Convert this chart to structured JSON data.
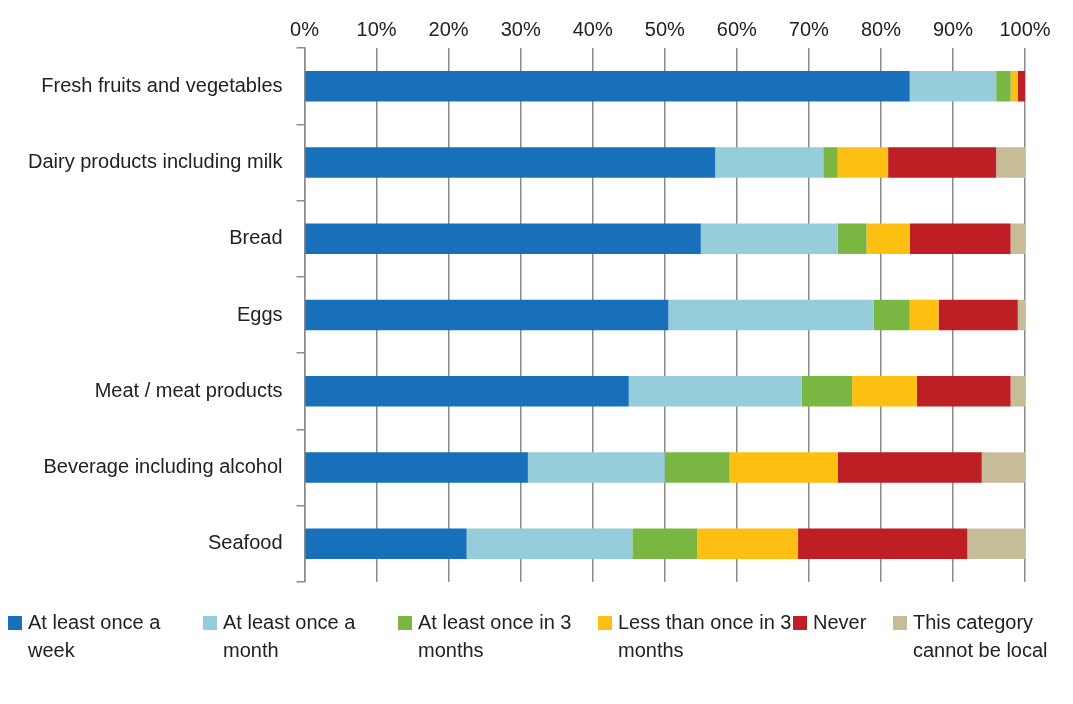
{
  "chart_data": {
    "type": "bar",
    "orientation": "horizontal",
    "stacked": true,
    "categories": [
      "Fresh fruits and vegetables",
      "Dairy products including milk",
      "Bread",
      "Eggs",
      "Meat / meat products",
      "Beverage including alcohol",
      "Seafood"
    ],
    "series": [
      {
        "name": "At least once a week",
        "color": "#1770b9",
        "values": [
          84,
          57,
          55,
          50.5,
          45,
          31,
          22.5
        ]
      },
      {
        "name": "At least once a month",
        "color": "#95cddb",
        "values": [
          12,
          15,
          19,
          28.5,
          24,
          19,
          23
        ]
      },
      {
        "name": "At least once in 3 months",
        "color": "#79b642",
        "values": [
          2,
          2,
          4,
          5,
          7,
          9,
          9
        ]
      },
      {
        "name": "Less than once in 3 months",
        "color": "#fcbf12",
        "values": [
          1,
          7,
          6,
          4,
          9,
          15,
          14
        ]
      },
      {
        "name": "Never",
        "color": "#be1f25",
        "values": [
          1,
          15,
          14,
          11,
          13,
          20,
          23.5
        ]
      },
      {
        "name": "This category cannot be local",
        "color": "#c6bd98",
        "values": [
          0,
          4,
          2,
          1,
          2,
          6,
          8
        ]
      }
    ],
    "xlim": [
      0,
      100
    ],
    "xticks": [
      {
        "value": 0,
        "label": "0%"
      },
      {
        "value": 10,
        "label": "10%"
      },
      {
        "value": 20,
        "label": "20%"
      },
      {
        "value": 30,
        "label": "30%"
      },
      {
        "value": 40,
        "label": "40%"
      },
      {
        "value": 50,
        "label": "50%"
      },
      {
        "value": 60,
        "label": "60%"
      },
      {
        "value": 70,
        "label": "70%"
      },
      {
        "value": 80,
        "label": "80%"
      },
      {
        "value": 90,
        "label": "90%"
      },
      {
        "value": 100,
        "label": "100%"
      }
    ],
    "grid": "x",
    "legend": "bottom"
  }
}
